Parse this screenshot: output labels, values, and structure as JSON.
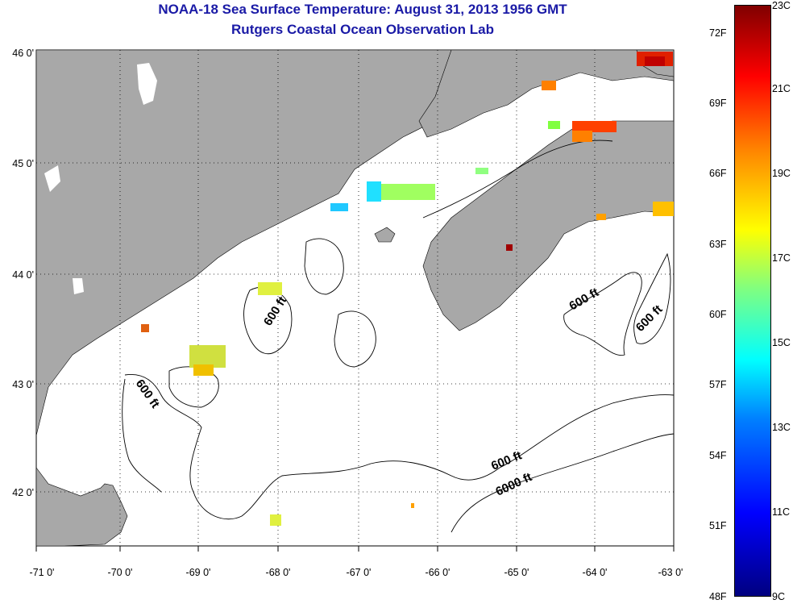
{
  "title_line1": "NOAA-18 Sea Surface Temperature:  August 31, 2013 1956 GMT",
  "title_line2": "Rutgers Coastal Ocean Observation Lab",
  "lon_labels": [
    "-71 0'",
    "-70 0'",
    "-69 0'",
    "-68 0'",
    "-67 0'",
    "-66 0'",
    "-65 0'",
    "-64 0'",
    "-63 0'"
  ],
  "lat_labels": [
    "46 0'",
    "45 0'",
    "44 0'",
    "43 0'",
    "42 0'"
  ],
  "contour_labels": [
    "600 ft",
    "600 ft",
    "600 ft",
    "600 ft",
    "6000 ft",
    "600 ft"
  ],
  "colorbar": {
    "fahrenheit": [
      "72F",
      "69F",
      "66F",
      "63F",
      "60F",
      "57F",
      "54F",
      "51F",
      "48F"
    ],
    "celsius": [
      "23C",
      "21C",
      "19C",
      "17C",
      "15C",
      "13C",
      "11C",
      "9C"
    ]
  },
  "colors": {
    "land": "#a8a8a8",
    "title": "#1a1aa6"
  }
}
